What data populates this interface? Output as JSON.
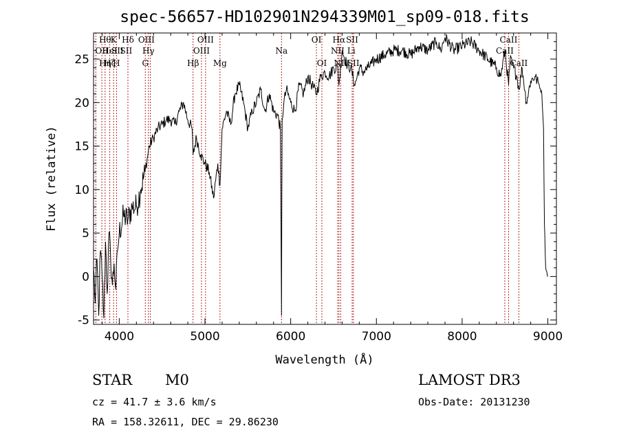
{
  "chart_data": {
    "type": "line",
    "title": "spec-56657-HD102901N294339M01_sp09-018.fits",
    "xlabel": "Wavelength (Å)",
    "ylabel": "Flux (relative)",
    "xlim": [
      3700,
      9100
    ],
    "ylim": [
      -5.5,
      28
    ],
    "xticks": [
      4000,
      5000,
      6000,
      7000,
      8000,
      9000
    ],
    "yticks": [
      -5,
      0,
      5,
      10,
      15,
      20,
      25
    ],
    "grid": false,
    "series": [
      {
        "x": [
          3700,
          3720,
          3740,
          3760,
          3780,
          3800,
          3820,
          3840,
          3860,
          3880,
          3900,
          3920,
          3940,
          3960,
          3980,
          4000,
          4050,
          4100,
          4150,
          4200,
          4250,
          4300,
          4350,
          4400,
          4450,
          4500,
          4550,
          4600,
          4650,
          4700,
          4750,
          4800,
          4850,
          4861,
          4900,
          4950,
          5000,
          5050,
          5100,
          5150,
          5175,
          5200,
          5250,
          5300,
          5350,
          5400,
          5450,
          5500,
          5550,
          5600,
          5650,
          5700,
          5750,
          5800,
          5850,
          5880,
          5893,
          5900,
          5920,
          5950,
          6000,
          6050,
          6100,
          6150,
          6200,
          6250,
          6300,
          6350,
          6400,
          6450,
          6500,
          6550,
          6563,
          6600,
          6650,
          6700,
          6750,
          6800,
          6850,
          6900,
          6950,
          7000,
          7100,
          7200,
          7300,
          7400,
          7500,
          7600,
          7700,
          7750,
          7800,
          7900,
          8000,
          8100,
          8200,
          8300,
          8400,
          8450,
          8500,
          8542,
          8560,
          8600,
          8640,
          8662,
          8700,
          8750,
          8800,
          8850,
          8900,
          8930,
          8950,
          8960,
          8975,
          9000
        ],
        "y": [
          1,
          -3,
          2,
          -4.5,
          3,
          0,
          -4.8,
          4,
          -2,
          5,
          2,
          -1,
          1.5,
          -1.5,
          3,
          5,
          7,
          6.5,
          8,
          8,
          10,
          12,
          15,
          16,
          17,
          17.5,
          18,
          18,
          17.5,
          19,
          20,
          18,
          17,
          14,
          16,
          14,
          13,
          12,
          9,
          13,
          10.5,
          17,
          19,
          17.5,
          21,
          22,
          20,
          17,
          19,
          20,
          21.5,
          19,
          21,
          19,
          18.5,
          17,
          -4.5,
          18,
          20,
          21.5,
          20,
          19,
          22,
          21,
          23,
          22,
          21,
          23,
          23.5,
          23,
          24,
          24,
          22,
          26,
          24.5,
          24,
          22,
          24,
          23.5,
          24,
          24.5,
          25,
          25.5,
          26,
          26,
          25.5,
          26.5,
          26,
          27,
          26,
          27.5,
          26,
          26.5,
          27,
          26,
          25,
          24,
          23,
          26,
          22,
          25,
          24,
          23,
          21.5,
          24,
          20,
          22.5,
          23,
          22,
          21,
          17,
          6,
          1,
          0
        ]
      }
    ],
    "line_labels": [
      {
        "x": 3797,
        "row": 1,
        "text": "OII"
      },
      {
        "x": 3835,
        "row": 0,
        "text": "Hθ"
      },
      {
        "x": 3835,
        "row": 2,
        "text": "Hη"
      },
      {
        "x": 3889,
        "row": 1,
        "text": "HeI"
      },
      {
        "x": 3889,
        "row": 2,
        "text": "Hζ"
      },
      {
        "x": 3934,
        "row": 0,
        "text": "K"
      },
      {
        "x": 3968,
        "row": 2,
        "text": "H"
      },
      {
        "x": 3980,
        "row": 1,
        "text": "SII"
      },
      {
        "x": 4101,
        "row": 0,
        "text": "Hδ"
      },
      {
        "x": 4080,
        "row": 1,
        "text": "SII"
      },
      {
        "x": 4317,
        "row": 0,
        "text": "OIII"
      },
      {
        "x": 4340,
        "row": 1,
        "text": "Hγ"
      },
      {
        "x": 4304,
        "row": 2,
        "text": "G"
      },
      {
        "x": 4861,
        "row": 2,
        "text": "Hβ"
      },
      {
        "x": 4959,
        "row": 1,
        "text": "OIII"
      },
      {
        "x": 5007,
        "row": 0,
        "text": "OIII"
      },
      {
        "x": 5175,
        "row": 2,
        "text": "Mg"
      },
      {
        "x": 5893,
        "row": 1,
        "text": "Na"
      },
      {
        "x": 6300,
        "row": 0,
        "text": "OI"
      },
      {
        "x": 6364,
        "row": 2,
        "text": "OI"
      },
      {
        "x": 6563,
        "row": 0,
        "text": "Hα"
      },
      {
        "x": 6548,
        "row": 1,
        "text": "NII"
      },
      {
        "x": 6583,
        "row": 2,
        "text": "NII"
      },
      {
        "x": 6707,
        "row": 1,
        "text": "Li"
      },
      {
        "x": 6717,
        "row": 0,
        "text": "SII"
      },
      {
        "x": 6731,
        "row": 2,
        "text": "SII"
      },
      {
        "x": 8498,
        "row": 1,
        "text": "CaII"
      },
      {
        "x": 8542,
        "row": 0,
        "text": "CaII"
      },
      {
        "x": 8662,
        "row": 2,
        "text": "CaII"
      }
    ],
    "line_markers": [
      3727,
      3797,
      3835,
      3889,
      3934,
      3968,
      4101,
      4304,
      4340,
      4363,
      4861,
      4959,
      5007,
      5175,
      5893,
      6300,
      6364,
      6548,
      6563,
      6583,
      6717,
      6731,
      8498,
      8542,
      8662
    ],
    "marker_color": "#b22222",
    "line_color": "#000000"
  },
  "info": {
    "object_class": "STAR",
    "subclass": "M0",
    "survey": "LAMOST DR3",
    "redshift": "cz = 41.7 ± 3.6 km/s",
    "obs_date": "Obs-Date: 20131230",
    "coords": "RA = 158.32611, DEC =  29.86230"
  }
}
